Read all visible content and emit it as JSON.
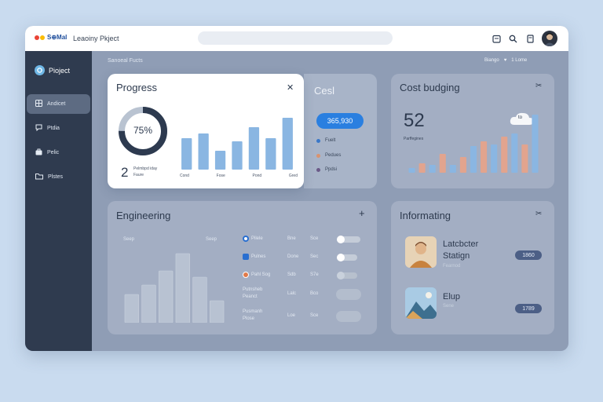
{
  "colors": {
    "background": "#c9dbef",
    "sidebar": "#2f3b4f",
    "accent_blue": "#2a7fe0",
    "bar_blue": "#8ab6e2",
    "bar_peach": "#e2a48e",
    "tag_bg": "#4c5f86"
  },
  "topbar": {
    "logo_text": "S⊕Mal",
    "project_title": "Leaoiny Pkject",
    "icons": [
      "calendar-icon",
      "search-icon",
      "document-icon",
      "avatar"
    ]
  },
  "sidebar": {
    "brand": "Pioject",
    "items": [
      {
        "label": "Andicet",
        "icon": "grid-icon",
        "active": true
      },
      {
        "label": "Ptdia",
        "icon": "chat-icon",
        "active": false
      },
      {
        "label": "Pelic",
        "icon": "bag-icon",
        "active": false
      },
      {
        "label": "Plstes",
        "icon": "folder-icon",
        "active": false
      }
    ]
  },
  "breadcrumb": "Sanoeal Fucts",
  "top_right": {
    "label": "Biango",
    "extra": "1 Lome"
  },
  "progress": {
    "title": "Progress",
    "percent_label": "75%",
    "percent": 75,
    "count": "2",
    "count_caption_1": "Pelmbpd iday",
    "count_caption_2": "Faure",
    "bars": [
      40,
      46,
      24,
      36,
      54,
      40,
      66
    ],
    "axis_labels": [
      "Cond",
      "Fose",
      "Pond",
      "Gred"
    ]
  },
  "cost": {
    "title": "Cesl",
    "amount": "365,930",
    "legend": [
      {
        "label": "Fuelt",
        "color": "#3a78c8"
      },
      {
        "label": "Pedues",
        "color": "#d9936f"
      },
      {
        "label": "Ppdsi",
        "color": "#6b5a88"
      }
    ]
  },
  "budget": {
    "title": "Cost budging",
    "value": "52",
    "caption": "Parffegines",
    "bars": [
      {
        "value": 6,
        "color": "#8ab6e2"
      },
      {
        "value": 12,
        "color": "#e2a48e"
      },
      {
        "value": 10,
        "color": "#8ab6e2"
      },
      {
        "value": 24,
        "color": "#e2a48e"
      },
      {
        "value": 10,
        "color": "#8ab6e2"
      },
      {
        "value": 20,
        "color": "#e2a48e"
      },
      {
        "value": 34,
        "color": "#8ab6e2"
      },
      {
        "value": 40,
        "color": "#e2a48e"
      },
      {
        "value": 36,
        "color": "#8ab6e2"
      },
      {
        "value": 46,
        "color": "#e2a48e"
      },
      {
        "value": 50,
        "color": "#8ab6e2"
      },
      {
        "value": 36,
        "color": "#e2a48e"
      },
      {
        "value": 74,
        "color": "#8ab6e2"
      }
    ],
    "cloud_label": "to"
  },
  "engineering": {
    "title": "Engineering",
    "col_left": "Seep",
    "col_right": "Seep",
    "bars": [
      36,
      48,
      66,
      88,
      58,
      28
    ],
    "rows": [
      {
        "name": "Pilele",
        "c1": "Bne",
        "c2": "Sce",
        "icon": "ring-icon",
        "toggle": true
      },
      {
        "name": "Pulnes",
        "c1": "Done",
        "c2": "Sec",
        "icon": "square-icon",
        "toggle": true
      },
      {
        "name": "Pahl Sog",
        "c1": "Sdb",
        "c2": "S7e",
        "icon": "orange-dot-icon",
        "toggle": false
      },
      {
        "name": "Putnsheb",
        "sub": "Peanct",
        "c1": "Lalc",
        "c2": "Bco",
        "icon": "",
        "toggle": null
      },
      {
        "name": "Pusmanh",
        "sub": "Plose",
        "c1": "Loe",
        "c2": "Sce",
        "icon": "",
        "toggle": null
      }
    ]
  },
  "informating": {
    "title": "Informating",
    "items": [
      {
        "name": "Latcbcter",
        "name2": "Statign",
        "sub": "Fearnod",
        "tag": "1860"
      },
      {
        "name": "Elup",
        "name2": "",
        "sub": "Sene",
        "tag": "1789"
      }
    ]
  }
}
